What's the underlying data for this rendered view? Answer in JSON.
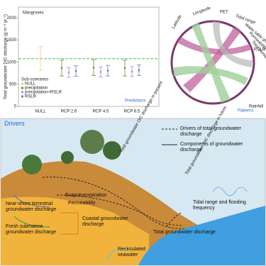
{
  "chart_data": {
    "type": "errorbar",
    "title": "Mangroves",
    "y_label": "Total groundwater DIC discharge (g m⁻² yr⁻¹)",
    "categories": [
      "NULL",
      "RCP 2.6",
      "RCP 4.5",
      "RCP 8.5"
    ],
    "series": [
      {
        "name": "NULL",
        "color": "#e8d27a",
        "values": [
          1090,
          null,
          null,
          null
        ],
        "errors": [
          270,
          null,
          null,
          null
        ]
      },
      {
        "name": "precipitation",
        "color": "#8a7a2e",
        "values": [
          null,
          870,
          880,
          870
        ],
        "errors": [
          null,
          180,
          180,
          180
        ]
      },
      {
        "name": "precipitation+RSLR",
        "color": "#b78ad6",
        "values": [
          null,
          770,
          780,
          790
        ],
        "errors": [
          null,
          110,
          110,
          110
        ]
      },
      {
        "name": "RSLR",
        "color": "#5a7fc8",
        "values": [
          null,
          800,
          810,
          820
        ],
        "errors": [
          null,
          120,
          120,
          120
        ]
      }
    ],
    "ylim": [
      0,
      2250
    ],
    "yticks": [
      0,
      500,
      1000,
      1500,
      2000
    ],
    "reference_line": {
      "value": 1080,
      "color": "#3ccc3c"
    },
    "legend_title": "Sub-scenarios",
    "legend": "lower left",
    "panel_label": "Predictions"
  },
  "patterns": {
    "panel_label": "Patterns",
    "labels": [
      "Latitude",
      "Longitude",
      "PET",
      "Tidal range",
      "Water table gradient",
      "Permeability",
      "Total inundation frequency",
      "RSLR",
      "Rainfall",
      "Total groundwater DIC discharge in present",
      "Total groundwater DIC discharge in future"
    ]
  },
  "drivers": {
    "panel_label": "Drivers",
    "legend": [
      "Drivers of total groundwater discharge",
      "Components of groundwater discharge"
    ],
    "labels": [
      "Evapotranspiration",
      "Permeability",
      "Near-shore terrestrial groundwater discharge",
      "Fresh submarine groundwater discharge",
      "Coastal groundwater discharge",
      "Tidal range and flooding frequency",
      "Total groundwater discharge",
      "Recirculated seawater"
    ]
  }
}
